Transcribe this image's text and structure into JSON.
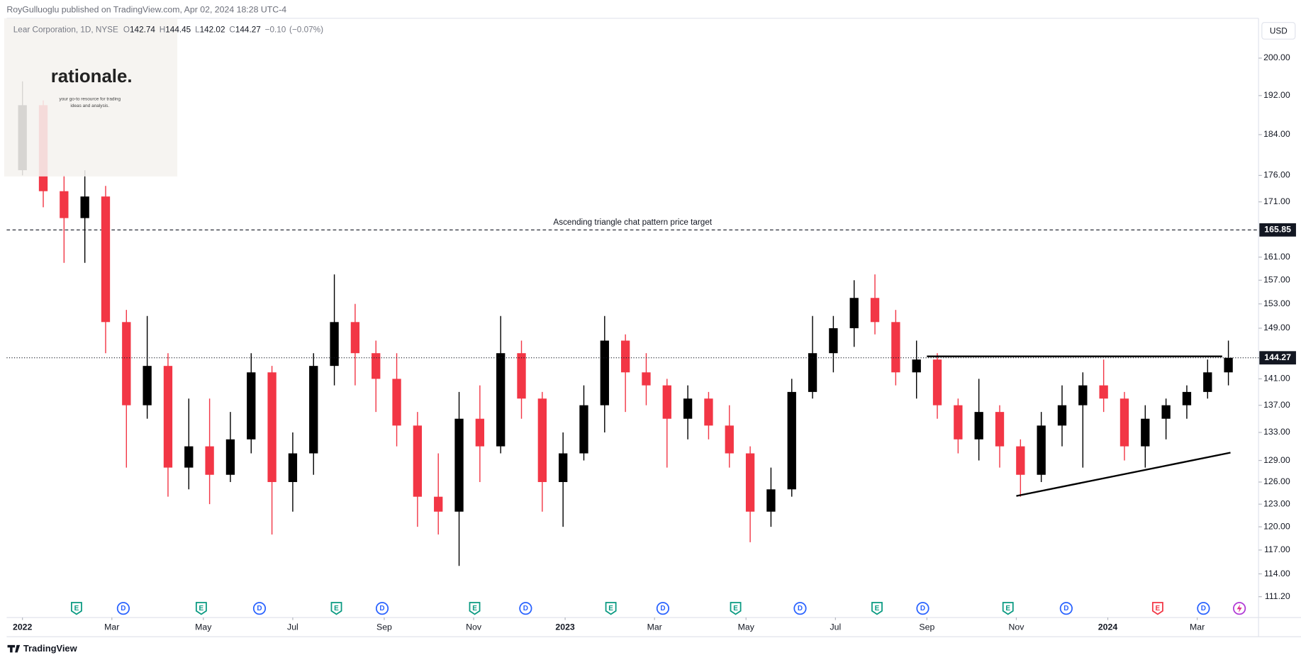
{
  "header": {
    "publisher": "RoyGulluoglu published on TradingView.com, Apr 02, 2024 18:28 UTC-4"
  },
  "legend": {
    "symbol": "Lear Corporation, 1D, NYSE",
    "ohlc": [
      {
        "key": "O",
        "value": 142.74
      },
      {
        "key": "H",
        "value": 144.45
      },
      {
        "key": "L",
        "value": 142.02
      },
      {
        "key": "C",
        "value": 144.27
      }
    ],
    "change": {
      "value": -0.1,
      "label": "−0.10"
    },
    "change_pct": {
      "value": -0.07,
      "label": "(−0.07%)"
    }
  },
  "logo": {
    "name": "rationale.",
    "tagline": [
      "your go-to resource for trading",
      "ideas and analysis."
    ]
  },
  "currency": "USD",
  "footer": {
    "brand": "TradingView"
  },
  "chart_data": {
    "type": "candlestick",
    "log_scale": true,
    "up_color": "#000000",
    "down_color": "#f23645",
    "candles": [
      [
        177,
        195,
        176,
        190
      ],
      [
        190,
        191,
        170,
        173
      ],
      [
        173,
        176,
        160,
        168
      ],
      [
        168,
        177,
        160,
        172
      ],
      [
        172,
        174,
        145,
        150
      ],
      [
        150,
        152,
        128,
        137
      ],
      [
        137,
        151,
        135,
        143
      ],
      [
        143,
        145,
        124,
        128
      ],
      [
        128,
        138,
        125,
        131
      ],
      [
        131,
        138,
        123,
        127
      ],
      [
        127,
        136,
        126,
        132
      ],
      [
        132,
        145,
        130,
        142
      ],
      [
        142,
        143,
        119,
        126
      ],
      [
        126,
        133,
        122,
        130
      ],
      [
        130,
        145,
        127,
        143
      ],
      [
        143,
        158,
        140,
        150
      ],
      [
        150,
        153,
        140,
        145
      ],
      [
        145,
        147,
        136,
        141
      ],
      [
        141,
        145,
        131,
        134
      ],
      [
        134,
        136,
        120,
        124
      ],
      [
        124,
        130,
        119,
        122
      ],
      [
        122,
        139,
        115,
        135
      ],
      [
        135,
        140,
        126,
        131
      ],
      [
        131,
        151,
        130,
        145
      ],
      [
        145,
        147,
        135,
        138
      ],
      [
        138,
        139,
        122,
        126
      ],
      [
        126,
        133,
        120,
        130
      ],
      [
        130,
        140,
        129,
        137
      ],
      [
        137,
        151,
        133,
        147
      ],
      [
        147,
        148,
        136,
        142
      ],
      [
        142,
        145,
        137,
        140
      ],
      [
        140,
        141,
        128,
        135
      ],
      [
        135,
        140,
        132,
        138
      ],
      [
        138,
        139,
        132,
        134
      ],
      [
        134,
        137,
        128,
        130
      ],
      [
        130,
        131,
        118,
        122
      ],
      [
        122,
        128,
        120,
        125
      ],
      [
        125,
        141,
        124,
        139
      ],
      [
        139,
        151,
        138,
        145
      ],
      [
        145,
        151,
        142,
        149
      ],
      [
        149,
        157,
        146,
        154
      ],
      [
        154,
        158,
        148,
        150
      ],
      [
        150,
        152,
        140,
        142
      ],
      [
        142,
        147,
        138,
        144
      ],
      [
        144,
        145,
        135,
        137
      ],
      [
        137,
        138,
        130,
        132
      ],
      [
        132,
        141,
        129,
        136
      ],
      [
        136,
        137,
        128,
        131
      ],
      [
        131,
        132,
        124,
        127
      ],
      [
        127,
        136,
        126,
        134
      ],
      [
        134,
        140,
        131,
        137
      ],
      [
        137,
        142,
        128,
        140
      ],
      [
        140,
        144,
        136,
        138
      ],
      [
        138,
        139,
        129,
        131
      ],
      [
        131,
        137,
        128,
        135
      ],
      [
        135,
        138,
        132,
        137
      ],
      [
        137,
        140,
        135,
        139
      ],
      [
        139,
        144,
        138,
        142
      ],
      [
        142,
        147,
        140,
        144.27
      ]
    ],
    "xlim": [
      -0.76,
      59.45
    ],
    "xticks": [
      {
        "value": 0,
        "label": "2022"
      },
      {
        "value": 4.3,
        "label": "Mar"
      },
      {
        "value": 8.7,
        "label": "May"
      },
      {
        "value": 13.0,
        "label": "Jul"
      },
      {
        "value": 17.4,
        "label": "Sep"
      },
      {
        "value": 21.7,
        "label": "Nov"
      },
      {
        "value": 26.1,
        "label": "2023"
      },
      {
        "value": 30.4,
        "label": "Mar"
      },
      {
        "value": 34.8,
        "label": "May"
      },
      {
        "value": 39.1,
        "label": "Jul"
      },
      {
        "value": 43.5,
        "label": "Sep"
      },
      {
        "value": 47.8,
        "label": "Nov"
      },
      {
        "value": 52.2,
        "label": "2024"
      },
      {
        "value": 56.5,
        "label": "Mar"
      }
    ],
    "ylim": [
      108.7,
      208.3
    ],
    "yticks": [
      {
        "value": 111.2,
        "label": "111.20"
      },
      {
        "value": 114,
        "label": "114.00"
      },
      {
        "value": 117,
        "label": "117.00"
      },
      {
        "value": 120,
        "label": "120.00"
      },
      {
        "value": 123,
        "label": "123.00"
      },
      {
        "value": 126,
        "label": "126.00"
      },
      {
        "value": 129,
        "label": "129.00"
      },
      {
        "value": 133,
        "label": "133.00"
      },
      {
        "value": 137,
        "label": "137.00"
      },
      {
        "value": 141,
        "label": "141.00"
      },
      {
        "value": 149,
        "label": "149.00"
      },
      {
        "value": 153,
        "label": "153.00"
      },
      {
        "value": 157,
        "label": "157.00"
      },
      {
        "value": 161,
        "label": "161.00"
      },
      {
        "value": 171,
        "label": "171.00"
      },
      {
        "value": 176,
        "label": "176.00"
      },
      {
        "value": 184,
        "label": "184.00"
      },
      {
        "value": 192,
        "label": "192.00"
      },
      {
        "value": 200,
        "label": "200.00"
      }
    ],
    "target": {
      "value": 165.85,
      "text": "Ascending triangle chat pattern price target"
    },
    "last_price": 144.27,
    "trendlines": [
      {
        "x": [
          43.5,
          57.7
        ],
        "y": [
          144.5,
          144.5
        ]
      },
      {
        "x": [
          47.8,
          58.1
        ],
        "y": [
          124.1,
          130.1
        ]
      }
    ],
    "events": [
      {
        "label": "E",
        "x": 2.6,
        "color": "#089981"
      },
      {
        "label": "D",
        "x": 4.85,
        "color": "#2962ff"
      },
      {
        "label": "E",
        "x": 8.6,
        "color": "#089981"
      },
      {
        "label": "D",
        "x": 11.4,
        "color": "#2962ff"
      },
      {
        "label": "E",
        "x": 15.1,
        "color": "#089981"
      },
      {
        "label": "D",
        "x": 17.3,
        "color": "#2962ff"
      },
      {
        "label": "E",
        "x": 21.75,
        "color": "#089981"
      },
      {
        "label": "D",
        "x": 24.2,
        "color": "#2962ff"
      },
      {
        "label": "E",
        "x": 28.3,
        "color": "#089981"
      },
      {
        "label": "D",
        "x": 30.8,
        "color": "#2962ff"
      },
      {
        "label": "E",
        "x": 34.3,
        "color": "#089981"
      },
      {
        "label": "D",
        "x": 37.4,
        "color": "#2962ff"
      },
      {
        "label": "E",
        "x": 41.1,
        "color": "#089981"
      },
      {
        "label": "D",
        "x": 43.3,
        "color": "#2962ff"
      },
      {
        "label": "E",
        "x": 47.4,
        "color": "#089981"
      },
      {
        "label": "D",
        "x": 50.2,
        "color": "#2962ff"
      },
      {
        "label": "E",
        "x": 54.6,
        "color": "#f23645"
      },
      {
        "label": "D",
        "x": 56.8,
        "color": "#2962ff"
      }
    ]
  }
}
